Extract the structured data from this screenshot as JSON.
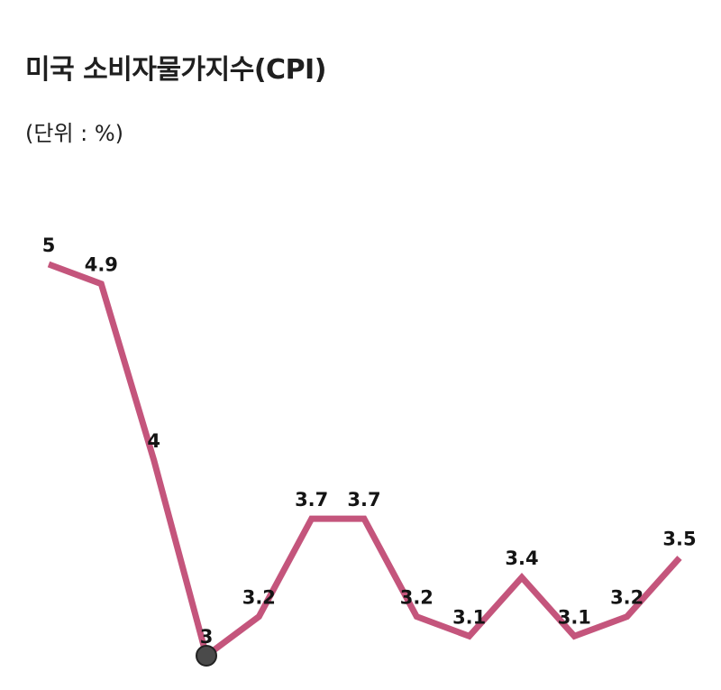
{
  "header": {
    "title": "미국 소비자물가지수(CPI)",
    "unit": "(단위 : %)"
  },
  "colors": {
    "line": "#c4557c",
    "marker": "#4a4a4a",
    "text": "#141414"
  },
  "chart_data": {
    "type": "line",
    "title": "미국 소비자물가지수(CPI)",
    "subtitle": "(단위 : %)",
    "xlabel": "",
    "ylabel": "",
    "series": [
      {
        "values": [
          5,
          4.9,
          4,
          3,
          3.2,
          3.7,
          3.7,
          3.2,
          3.1,
          3.4,
          3.1,
          3.2,
          3.5
        ]
      }
    ],
    "data_labels": [
      "5",
      "4.9",
      "4",
      "3",
      "3.2",
      "3.7",
      "3.7",
      "3.2",
      "3.1",
      "3.4",
      "3.1",
      "3.2",
      "3.5"
    ],
    "highlighted_index": 3,
    "ylim": [
      3,
      5
    ],
    "grid": false,
    "legend": "none"
  }
}
